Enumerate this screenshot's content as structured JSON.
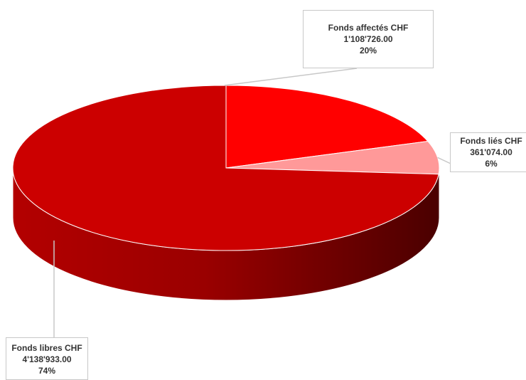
{
  "chart_data": {
    "type": "pie",
    "style": "3d",
    "slices": [
      {
        "label": "Fonds affectés CHF",
        "amount": "1'108'726.00",
        "percent": "20%",
        "value": 1108726.0,
        "color": "#ff0000"
      },
      {
        "label": "Fonds liés CHF",
        "amount": "361'074.00",
        "percent": "6%",
        "value": 361074.0,
        "color": "#ff9999"
      },
      {
        "label": "Fonds libres CHF",
        "amount": "4'138'933.00",
        "percent": "74%",
        "value": 4138933.0,
        "color": "#cc0000"
      }
    ],
    "legend": "none"
  }
}
